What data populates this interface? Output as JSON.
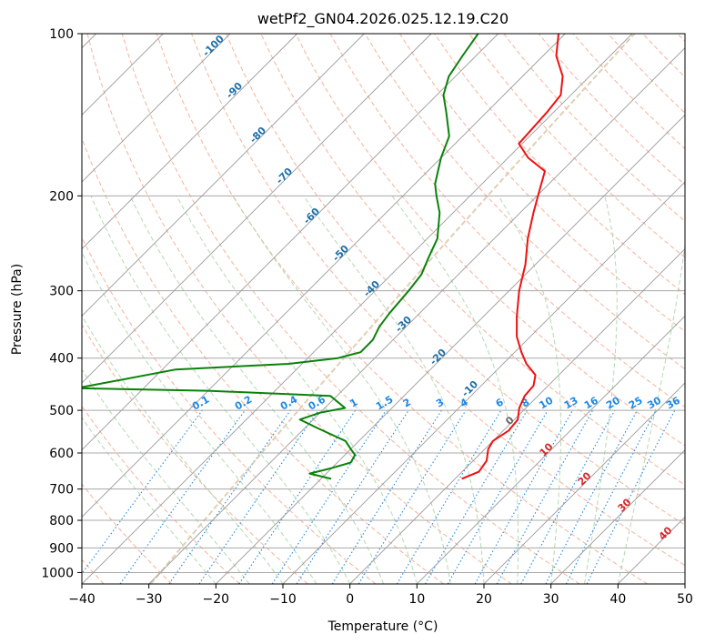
{
  "title": "wetPf2_GN04.2026.025.12.19.C20",
  "colors": {
    "temperature": "#ee1111",
    "dewpoint": "#0a820a",
    "isotherm": "#9a9a9a",
    "isobar": "#a8a8a8",
    "dry_adiabat": "#f4a58a",
    "moist_adiabat": "#a9d6a9",
    "mixing_ratio": "#1e88e5",
    "dry_label": "#1f6fa8",
    "moist_label": "#d62728",
    "isotherm_label_zero": "#666666",
    "tan_curve": "#d9c3a3"
  },
  "chart_data": {
    "type": "line",
    "title": "wetPf2_GN04.2026.025.12.19.C20",
    "xlabel": "Temperature (°C)",
    "ylabel": "Pressure (hPa)",
    "xlim": [
      -40,
      50
    ],
    "ylim": [
      1050,
      100
    ],
    "y_scale": "log",
    "x_ticks": [
      -40,
      -30,
      -20,
      -10,
      0,
      10,
      20,
      30,
      40,
      50
    ],
    "x_tick_labels": [
      "−40",
      "−30",
      "−20",
      "−10",
      "0",
      "10",
      "20",
      "30",
      "40",
      "50"
    ],
    "y_ticks": [
      100,
      200,
      300,
      400,
      500,
      600,
      700,
      800,
      900,
      1000
    ],
    "y_tick_labels": [
      "100",
      "200",
      "300",
      "400",
      "500",
      "600",
      "700",
      "800",
      "900",
      "1000"
    ],
    "grid": true,
    "skew": 45,
    "series": [
      {
        "key": "temperature",
        "points": [
          [
            1.0,
            670
          ],
          [
            2.5,
            650
          ],
          [
            2.0,
            620
          ],
          [
            0.5,
            590
          ],
          [
            0.0,
            570
          ],
          [
            0.8,
            545
          ],
          [
            0.5,
            520
          ],
          [
            -1.0,
            495
          ],
          [
            -2.0,
            470
          ],
          [
            -2.2,
            450
          ],
          [
            -3.5,
            430
          ],
          [
            -6.5,
            410
          ],
          [
            -9.0,
            390
          ],
          [
            -12.0,
            365
          ],
          [
            -15.0,
            335
          ],
          [
            -18.5,
            300
          ],
          [
            -21.5,
            268
          ],
          [
            -25.0,
            240
          ],
          [
            -28.0,
            215
          ],
          [
            -30.5,
            195
          ],
          [
            -32.5,
            180
          ],
          [
            -37.0,
            170
          ],
          [
            -40.5,
            160
          ],
          [
            -41.0,
            140
          ],
          [
            -41.5,
            130
          ],
          [
            -44.0,
            120
          ],
          [
            -48.0,
            110
          ],
          [
            -51.0,
            100
          ]
        ]
      },
      {
        "key": "dewpoint",
        "points": [
          [
            -18.5,
            670
          ],
          [
            -22.5,
            655
          ],
          [
            -20.0,
            640
          ],
          [
            -18.0,
            625
          ],
          [
            -18.5,
            605
          ],
          [
            -20.0,
            590
          ],
          [
            -22.0,
            570
          ],
          [
            -28.0,
            540
          ],
          [
            -32.0,
            520
          ],
          [
            -30.0,
            505
          ],
          [
            -27.0,
            495
          ],
          [
            -31.0,
            470
          ],
          [
            -50.0,
            460
          ],
          [
            -70.0,
            455
          ],
          [
            -58.0,
            420
          ],
          [
            -42.0,
            410
          ],
          [
            -35.5,
            400
          ],
          [
            -33.0,
            390
          ],
          [
            -33.0,
            370
          ],
          [
            -34.0,
            350
          ],
          [
            -34.5,
            330
          ],
          [
            -35.0,
            300
          ],
          [
            -35.5,
            280
          ],
          [
            -37.0,
            260
          ],
          [
            -38.5,
            240
          ],
          [
            -42.0,
            215
          ],
          [
            -45.0,
            200
          ],
          [
            -47.0,
            190
          ],
          [
            -50.0,
            170
          ],
          [
            -52.0,
            155
          ],
          [
            -56.0,
            140
          ],
          [
            -59.0,
            130
          ],
          [
            -61.0,
            120
          ],
          [
            -62.0,
            110
          ],
          [
            -63.0,
            100
          ]
        ]
      }
    ],
    "dry_adiabat_labels": [
      "-100",
      "-90",
      "-80",
      "-70",
      "-60",
      "-50",
      "-40",
      "-30",
      "-20",
      "-10"
    ],
    "moist_adiabat_labels": [
      "0",
      "10",
      "20",
      "30",
      "40"
    ],
    "mixing_ratio_labels": [
      "0.1",
      "0.2",
      "0.4",
      "0.6",
      "1",
      "1.5",
      "2",
      "3",
      "4",
      "6",
      "8",
      "10",
      "13",
      "16",
      "20",
      "25",
      "30",
      "36"
    ]
  }
}
